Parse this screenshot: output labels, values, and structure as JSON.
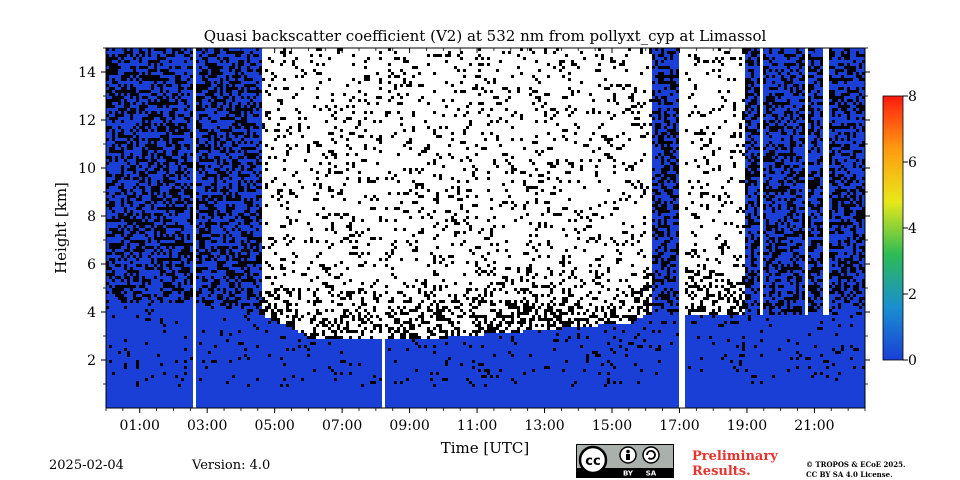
{
  "chart_data": {
    "type": "heatmap",
    "title": "Quasi backscatter coefficient (V2) at 532 nm from pollyxt_cyp at Limassol",
    "xlabel": "Time [UTC]",
    "ylabel": "Height [km]",
    "xlim_hours": [
      0.0,
      22.5
    ],
    "ylim_km": [
      0.0,
      15.0
    ],
    "x_ticks": [
      {
        "hour": 1,
        "label": "01:00"
      },
      {
        "hour": 3,
        "label": "03:00"
      },
      {
        "hour": 5,
        "label": "05:00"
      },
      {
        "hour": 7,
        "label": "07:00"
      },
      {
        "hour": 9,
        "label": "09:00"
      },
      {
        "hour": 11,
        "label": "11:00"
      },
      {
        "hour": 13,
        "label": "13:00"
      },
      {
        "hour": 15,
        "label": "15:00"
      },
      {
        "hour": 17,
        "label": "17:00"
      },
      {
        "hour": 19,
        "label": "19:00"
      },
      {
        "hour": 21,
        "label": "21:00"
      }
    ],
    "y_ticks": [
      {
        "km": 2,
        "label": "2"
      },
      {
        "km": 4,
        "label": "4"
      },
      {
        "km": 6,
        "label": "6"
      },
      {
        "km": 8,
        "label": "8"
      },
      {
        "km": 10,
        "label": "10"
      },
      {
        "km": 12,
        "label": "12"
      },
      {
        "km": 14,
        "label": "14"
      }
    ],
    "colorbar": {
      "min": 0,
      "max": 8,
      "ticks": [
        {
          "value": 0,
          "label": "0"
        },
        {
          "value": 2,
          "label": "2"
        },
        {
          "value": 4,
          "label": "4"
        },
        {
          "value": 6,
          "label": "6"
        },
        {
          "value": 8,
          "label": "8"
        }
      ],
      "colors": [
        "#1a3fd6",
        "#1a8fd0",
        "#2dbb55",
        "#e8e81a",
        "#ff9a10",
        "#ff1a10"
      ]
    },
    "data_gaps_hours": [
      [
        2.5,
        2.65
      ],
      [
        8.1,
        8.25
      ],
      [
        16.9,
        17.1
      ]
    ],
    "aerosol_layer_top_km": [
      {
        "hour": 0.0,
        "km": 4.5
      },
      {
        "hour": 2.5,
        "km": 4.5
      },
      {
        "hour": 4.5,
        "km": 4.0
      },
      {
        "hour": 6.0,
        "km": 3.0
      },
      {
        "hour": 10.0,
        "km": 3.0
      },
      {
        "hour": 15.5,
        "km": 3.6
      },
      {
        "hour": 16.0,
        "km": 4.0
      }
    ],
    "colors": {
      "aerosol": "#1a3fd6",
      "noise": "#000000",
      "clear": "#ffffff"
    }
  },
  "footer": {
    "date": "2025-02-04",
    "version": "Version: 4.0",
    "preliminary_line1": "Preliminary",
    "preliminary_line2": "Results.",
    "copyright_line1": "© TROPOS & ECoE 2025.",
    "copyright_line2": "CC BY SA 4.0 License.",
    "license_badge_by": "BY",
    "license_badge_sa": "SA"
  }
}
